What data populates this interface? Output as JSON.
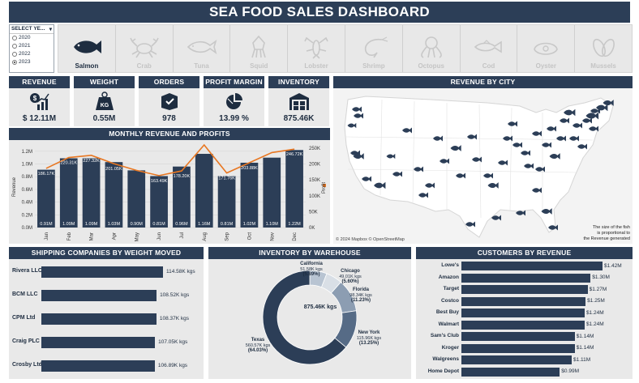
{
  "title": "SEA FOOD SALES DASHBOARD",
  "year_filter": {
    "label": "SELECT YE...",
    "options": [
      "2020",
      "2021",
      "2022",
      "2023"
    ],
    "selected": "2023"
  },
  "products": [
    {
      "label": "Salmon",
      "icon": "salmon-icon",
      "active": true
    },
    {
      "label": "Crab",
      "icon": "crab-icon",
      "active": false
    },
    {
      "label": "Tuna",
      "icon": "tuna-icon",
      "active": false
    },
    {
      "label": "Squid",
      "icon": "squid-icon",
      "active": false
    },
    {
      "label": "Lobster",
      "icon": "lobster-icon",
      "active": false
    },
    {
      "label": "Shrimp",
      "icon": "shrimp-icon",
      "active": false
    },
    {
      "label": "Octopus",
      "icon": "octopus-icon",
      "active": false
    },
    {
      "label": "Cod",
      "icon": "cod-icon",
      "active": false
    },
    {
      "label": "Oyster",
      "icon": "oyster-icon",
      "active": false
    },
    {
      "label": "Mussels",
      "icon": "mussels-icon",
      "active": false
    }
  ],
  "kpis": {
    "revenue": {
      "label": "REVENUE",
      "value": "$ 12.11M",
      "icon": "revenue-chart-icon"
    },
    "weight": {
      "label": "WEIGHT",
      "value": "0.55M",
      "icon": "kg-weight-icon",
      "icon_text": "KG"
    },
    "orders": {
      "label": "ORDERS",
      "value": "978",
      "icon": "order-box-icon"
    },
    "profit_margin": {
      "label": "PROFIT MARGIN",
      "value": "13.99 %",
      "icon": "pie-chart-icon"
    },
    "inventory": {
      "label": "INVENTORY",
      "value": "875.46K",
      "icon": "warehouse-icon"
    }
  },
  "map": {
    "title": "REVENUE BY CITY",
    "credit": "© 2024 Mapbox © OpenStreetMap",
    "note_lines": [
      "The size of the fish",
      "is proportional to",
      "the Revenue generated"
    ]
  },
  "monthly": {
    "title": "MONTHLY REVENUE AND PROFITS",
    "y_label": "Revenue",
    "y2_label": "Profit",
    "y_ticks": [
      "1.2M",
      "1.0M",
      "0.8M",
      "0.6M",
      "0.4M",
      "0.2M",
      "0.0M"
    ],
    "y2_ticks": [
      "250K",
      "200K",
      "150K",
      "100K",
      "50K",
      "0K"
    ]
  },
  "chart_data": {
    "type": "bar",
    "title": "MONTHLY REVENUE AND PROFITS",
    "categories": [
      "Jan",
      "Feb",
      "Mar",
      "Apr",
      "May",
      "Jun",
      "Jul",
      "Aug",
      "Sep",
      "Oct",
      "Nov",
      "Dec"
    ],
    "series": [
      {
        "name": "Revenue",
        "type": "bar",
        "values": [
          0.91,
          1.09,
          1.09,
          1.03,
          0.9,
          0.81,
          0.96,
          1.16,
          0.81,
          1.02,
          1.1,
          1.22
        ],
        "labels": [
          "0.91M",
          "1.09M",
          "1.09M",
          "1.03M",
          "0.90M",
          "0.81M",
          "0.96M",
          "1.16M",
          "0.81M",
          "1.02M",
          "1.10M",
          "1.22M"
        ]
      },
      {
        "name": "Profit",
        "type": "line",
        "values": [
          186.17,
          220.31,
          227.32,
          201.05,
          180,
          163.49,
          178.2,
          260,
          171.76,
          203.88,
          236,
          246.72
        ],
        "labels": [
          "186.17K",
          "220.31K",
          "227.32K",
          "201.05K",
          "",
          "163.49K",
          "178.20K",
          "",
          "171.76K",
          "203.88K",
          "",
          "246.72K"
        ]
      }
    ],
    "ylabel": "Revenue",
    "y2label": "Profit",
    "ylim": [
      0,
      1.3
    ],
    "y2lim": [
      0,
      260
    ]
  },
  "shipping": {
    "title": "SHIPPING COMPANIES BY WEIGHT MOVED",
    "rows": [
      {
        "name": "Rivera LLC",
        "value": 114.58,
        "label": "114.58K kgs"
      },
      {
        "name": "BCM LLC",
        "value": 108.52,
        "label": "108.52K kgs"
      },
      {
        "name": "CPM Ltd",
        "value": 108.37,
        "label": "108.37K kgs"
      },
      {
        "name": "Craig PLC",
        "value": 107.05,
        "label": "107.05K kgs"
      },
      {
        "name": "Crosby Ltd",
        "value": 106.89,
        "label": "106.89K kgs"
      }
    ]
  },
  "warehouse": {
    "title": "INVENTORY BY WAREHOUSE",
    "total": "875.46K kgs",
    "slices": [
      {
        "name": "California",
        "value": 51.58,
        "kgs": "51.58K kgs",
        "pct": "(5.89%)",
        "color": "#b8c4d2"
      },
      {
        "name": "Chicago",
        "value": 49.01,
        "kgs": "49.01K kgs",
        "pct": "(5.60%)",
        "color": "#d9dfe6"
      },
      {
        "name": "Florida",
        "value": 98.34,
        "kgs": "98.34K kgs",
        "pct": "(11.23%)",
        "color": "#8c9db2"
      },
      {
        "name": "New York",
        "value": 115.96,
        "kgs": "115.96K kgs",
        "pct": "(13.25%)",
        "color": "#566b86"
      },
      {
        "name": "Texas",
        "value": 560.57,
        "kgs": "560.57K kgs",
        "pct": "(64.03%)",
        "color": "#2c3e57"
      }
    ]
  },
  "customers": {
    "title": "CUSTOMERS BY REVENUE",
    "rows": [
      {
        "name": "Lowe's",
        "value": 1.42,
        "label": "$1.42M"
      },
      {
        "name": "Amazon",
        "value": 1.3,
        "label": "$1.30M"
      },
      {
        "name": "Target",
        "value": 1.27,
        "label": "$1.27M"
      },
      {
        "name": "Costco",
        "value": 1.25,
        "label": "$1.25M"
      },
      {
        "name": "Best Buy",
        "value": 1.24,
        "label": "$1.24M"
      },
      {
        "name": "Walmart",
        "value": 1.24,
        "label": "$1.24M"
      },
      {
        "name": "Sam's Club",
        "value": 1.14,
        "label": "$1.14M"
      },
      {
        "name": "Kroger",
        "value": 1.14,
        "label": "$1.14M"
      },
      {
        "name": "Walgreens",
        "value": 1.11,
        "label": "$1.11M"
      },
      {
        "name": "Home Depot",
        "value": 0.99,
        "label": "$0.99M"
      }
    ]
  },
  "colors": {
    "navy": "#2c3e57",
    "accent": "#e87722",
    "panel": "#e9e9e9"
  }
}
